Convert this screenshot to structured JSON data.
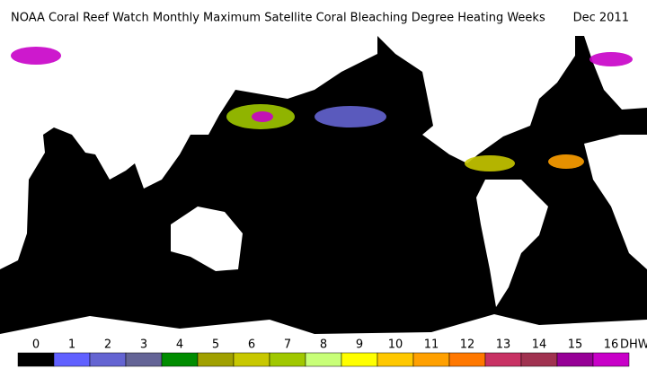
{
  "header": {
    "title": "NOAA Coral Reef Watch Monthly Maximum Satellite Coral Bleaching Degree Heating Weeks",
    "date": "Dec 2011"
  },
  "colorbar": {
    "labels": [
      "0",
      "1",
      "2",
      "3",
      "4",
      "5",
      "6",
      "7",
      "8",
      "9",
      "10",
      "11",
      "12",
      "13",
      "14",
      "15",
      "16"
    ],
    "unit": "DHW",
    "colors": [
      "#000000",
      "#6060ff",
      "#6464d2",
      "#646496",
      "#008c00",
      "#a0a000",
      "#c8c800",
      "#a0c800",
      "#c8ff78",
      "#ffff00",
      "#ffc800",
      "#ffa000",
      "#ff7800",
      "#c83264",
      "#a03250",
      "#960096",
      "#c800c8"
    ]
  }
}
